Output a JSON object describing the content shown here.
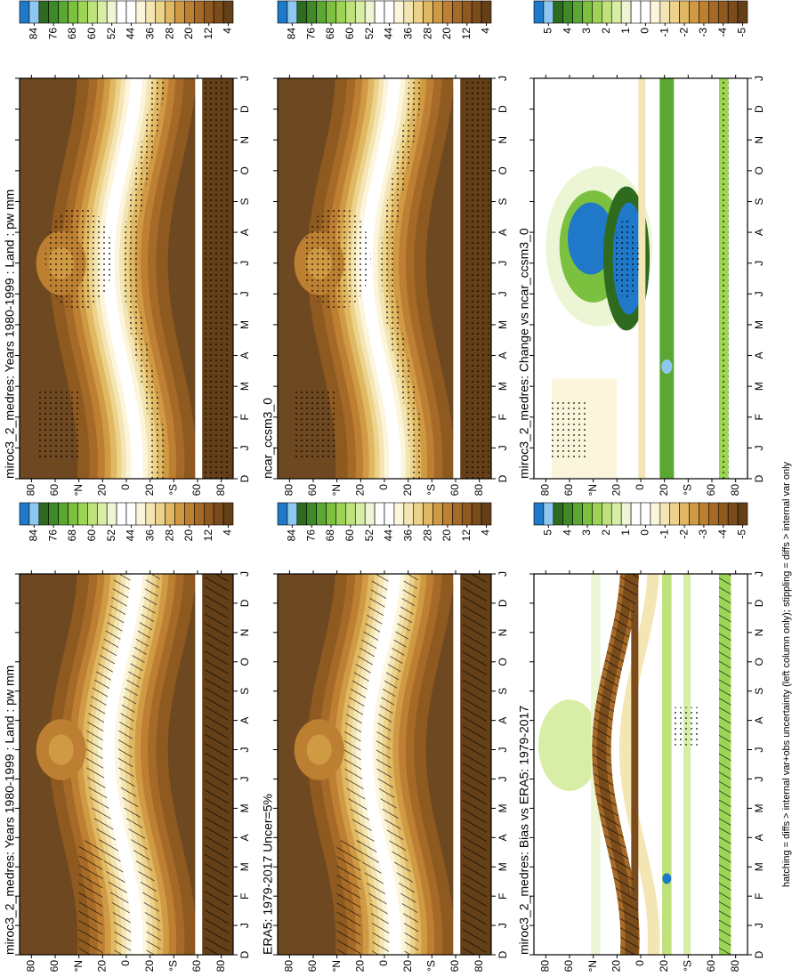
{
  "chart_data": [
    {
      "type": "contour",
      "title": "miroc3_2_medres: Years 1980-1999 : Land : pw mm",
      "categories": [
        "D",
        "J",
        "F",
        "M",
        "A",
        "M",
        "J",
        "J",
        "A",
        "S",
        "O",
        "N",
        "D",
        "J"
      ],
      "ylim": [
        -90,
        90
      ],
      "yticks": [
        80,
        60,
        {
          "value": 40,
          "label": "°N"
        },
        20,
        0,
        {
          "value": -20,
          "label": "20"
        },
        {
          "value": -40,
          "label": "°S"
        },
        {
          "value": -60,
          "label": "60"
        },
        {
          "value": -80,
          "label": "80"
        }
      ],
      "colorbar_ticks": [
        84,
        76,
        68,
        60,
        52,
        44,
        36,
        28,
        20,
        12,
        4
      ],
      "colors": [
        "#1f78c8",
        "#8ec8f0",
        "#2e6b1e",
        "#3f8a28",
        "#5aa832",
        "#7cc040",
        "#9ed456",
        "#bfe27c",
        "#d8eea6",
        "#ecf6d4",
        "#ffffff",
        "#ffffff",
        "#fbf5dc",
        "#f4e6b4",
        "#ecd28a",
        "#e0b864",
        "#d09a45",
        "#bd8033",
        "#a66a28",
        "#8f5a20",
        "#7a4c1c",
        "#643f17"
      ]
    },
    {
      "type": "contour",
      "title": "miroc3_2_medres: Years 1980-1999 : Land : pw mm",
      "categories": [
        "D",
        "J",
        "F",
        "M",
        "A",
        "M",
        "J",
        "J",
        "A",
        "S",
        "O",
        "N",
        "D",
        "J"
      ],
      "ylim": [
        -90,
        90
      ],
      "yticks": [
        80,
        60,
        {
          "value": 40,
          "label": "°N"
        },
        20,
        0,
        {
          "value": -20,
          "label": "20"
        },
        {
          "value": -40,
          "label": "°S"
        },
        {
          "value": -60,
          "label": "60"
        },
        {
          "value": -80,
          "label": "80"
        }
      ],
      "colorbar_ticks": [
        84,
        76,
        68,
        60,
        52,
        44,
        36,
        28,
        20,
        12,
        4
      ],
      "colors": [
        "#1f78c8",
        "#8ec8f0",
        "#2e6b1e",
        "#3f8a28",
        "#5aa832",
        "#7cc040",
        "#9ed456",
        "#bfe27c",
        "#d8eea6",
        "#ecf6d4",
        "#ffffff",
        "#ffffff",
        "#fbf5dc",
        "#f4e6b4",
        "#ecd28a",
        "#e0b864",
        "#d09a45",
        "#bd8033",
        "#a66a28",
        "#8f5a20",
        "#7a4c1c",
        "#643f17"
      ]
    },
    {
      "type": "contour",
      "title": "ERA5: 1979-2017 Uncer=5%",
      "categories": [
        "D",
        "J",
        "F",
        "M",
        "A",
        "M",
        "J",
        "J",
        "A",
        "S",
        "O",
        "N",
        "D",
        "J"
      ],
      "ylim": [
        -90,
        90
      ],
      "yticks": [
        80,
        60,
        {
          "value": 40,
          "label": "°N"
        },
        20,
        0,
        {
          "value": -20,
          "label": "20"
        },
        {
          "value": -40,
          "label": "°S"
        },
        {
          "value": -60,
          "label": "60"
        },
        {
          "value": -80,
          "label": "80"
        }
      ],
      "colorbar_ticks": [
        84,
        76,
        68,
        60,
        52,
        44,
        36,
        28,
        20,
        12,
        4
      ],
      "colors": [
        "#1f78c8",
        "#8ec8f0",
        "#2e6b1e",
        "#3f8a28",
        "#5aa832",
        "#7cc040",
        "#9ed456",
        "#bfe27c",
        "#d8eea6",
        "#ecf6d4",
        "#ffffff",
        "#ffffff",
        "#fbf5dc",
        "#f4e6b4",
        "#ecd28a",
        "#e0b864",
        "#d09a45",
        "#bd8033",
        "#a66a28",
        "#8f5a20",
        "#7a4c1c",
        "#643f17"
      ]
    },
    {
      "type": "contour",
      "title": "ncar_ccsm3_0",
      "categories": [
        "D",
        "J",
        "F",
        "M",
        "A",
        "M",
        "J",
        "J",
        "A",
        "S",
        "O",
        "N",
        "D",
        "J"
      ],
      "ylim": [
        -90,
        90
      ],
      "yticks": [
        80,
        60,
        {
          "value": 40,
          "label": "°N"
        },
        20,
        0,
        {
          "value": -20,
          "label": "20"
        },
        {
          "value": -40,
          "label": "°S"
        },
        {
          "value": -60,
          "label": "60"
        },
        {
          "value": -80,
          "label": "80"
        }
      ],
      "colorbar_ticks": [
        84,
        76,
        68,
        60,
        52,
        44,
        36,
        28,
        20,
        12,
        4
      ],
      "colors": [
        "#1f78c8",
        "#8ec8f0",
        "#2e6b1e",
        "#3f8a28",
        "#5aa832",
        "#7cc040",
        "#9ed456",
        "#bfe27c",
        "#d8eea6",
        "#ecf6d4",
        "#ffffff",
        "#ffffff",
        "#fbf5dc",
        "#f4e6b4",
        "#ecd28a",
        "#e0b864",
        "#d09a45",
        "#bd8033",
        "#a66a28",
        "#8f5a20",
        "#7a4c1c",
        "#643f17"
      ]
    },
    {
      "type": "contour",
      "title": "miroc3_2_medres: Bias vs ERA5: 1979-2017",
      "categories": [
        "D",
        "J",
        "F",
        "M",
        "A",
        "M",
        "J",
        "J",
        "A",
        "S",
        "O",
        "N",
        "D",
        "J"
      ],
      "ylim": [
        -90,
        90
      ],
      "yticks": [
        80,
        60,
        {
          "value": 40,
          "label": "°N"
        },
        20,
        0,
        {
          "value": -20,
          "label": "20"
        },
        {
          "value": -40,
          "label": "°S"
        },
        {
          "value": -60,
          "label": "60"
        },
        {
          "value": -80,
          "label": "80"
        }
      ],
      "colorbar_ticks": [
        5,
        4,
        3,
        2,
        1,
        0,
        -1,
        -2,
        -3,
        -4,
        -5
      ],
      "colors": [
        "#1f78c8",
        "#8ec8f0",
        "#2e6b1e",
        "#3f8a28",
        "#5aa832",
        "#7cc040",
        "#9ed456",
        "#bfe27c",
        "#d8eea6",
        "#ecf6d4",
        "#ffffff",
        "#ffffff",
        "#fbf5dc",
        "#f4e6b4",
        "#ecd28a",
        "#e0b864",
        "#d09a45",
        "#bd8033",
        "#a66a28",
        "#8f5a20",
        "#7a4c1c",
        "#643f17"
      ]
    },
    {
      "type": "contour",
      "title": "miroc3_2_medres: Change vs ncar_ccsm3_0",
      "categories": [
        "D",
        "J",
        "F",
        "M",
        "A",
        "M",
        "J",
        "J",
        "A",
        "S",
        "O",
        "N",
        "D",
        "J"
      ],
      "ylim": [
        -90,
        90
      ],
      "yticks": [
        80,
        60,
        {
          "value": 40,
          "label": "°N"
        },
        20,
        0,
        {
          "value": -20,
          "label": "20"
        },
        {
          "value": -40,
          "label": "°S"
        },
        {
          "value": -60,
          "label": "60"
        },
        {
          "value": -80,
          "label": "80"
        }
      ],
      "colorbar_ticks": [
        5,
        4,
        3,
        2,
        1,
        0,
        -1,
        -2,
        -3,
        -4,
        -5
      ],
      "colors": [
        "#1f78c8",
        "#8ec8f0",
        "#2e6b1e",
        "#3f8a28",
        "#5aa832",
        "#7cc040",
        "#9ed456",
        "#bfe27c",
        "#d8eea6",
        "#ecf6d4",
        "#ffffff",
        "#ffffff",
        "#fbf5dc",
        "#f4e6b4",
        "#ecd28a",
        "#e0b864",
        "#d09a45",
        "#bd8033",
        "#a66a28",
        "#8f5a20",
        "#7a4c1c",
        "#643f17"
      ]
    }
  ],
  "footer": "hatching = diffs > internal var+obs uncertainty (left column only); stippling = diffs > internal var only"
}
